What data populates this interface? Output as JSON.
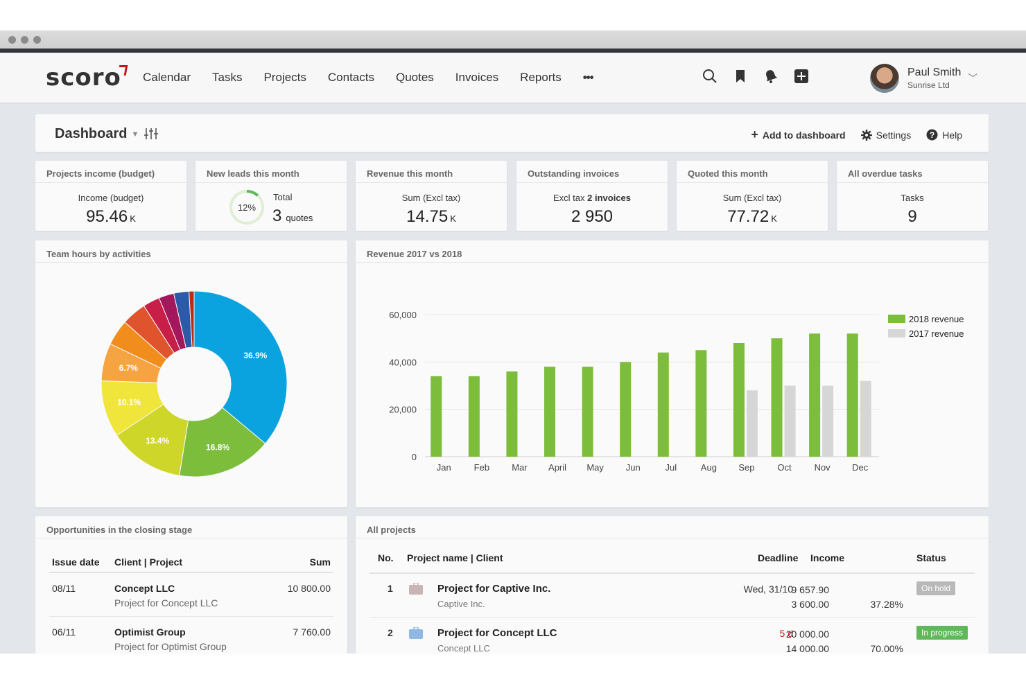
{
  "nav": {
    "logo": "scoro",
    "menu": [
      "Calendar",
      "Tasks",
      "Projects",
      "Contacts",
      "Quotes",
      "Invoices",
      "Reports",
      "•••"
    ],
    "user": {
      "name": "Paul Smith",
      "company": "Sunrise Ltd"
    }
  },
  "dashboard": {
    "title": "Dashboard",
    "add_label": "Add to dashboard",
    "settings_label": "Settings",
    "help_label": "Help"
  },
  "kpis": [
    {
      "title": "Projects income (budget)",
      "label": "Income (budget)",
      "value": "95.46",
      "unit": "K"
    },
    {
      "title": "New leads this month",
      "label": "Total",
      "value": "3",
      "unit": "quotes",
      "percent_text": "12%",
      "percent": 12
    },
    {
      "title": "Revenue this month",
      "label": "Sum (Excl tax)",
      "value": "14.75",
      "unit": "K"
    },
    {
      "title": "Outstanding invoices",
      "label_prefix": "Excl tax",
      "label_bold": "2 invoices",
      "value": "2 950"
    },
    {
      "title": "Quoted this month",
      "label": "Sum (Excl tax)",
      "value": "77.72",
      "unit": "K"
    },
    {
      "title": "All overdue tasks",
      "label": "Tasks",
      "value": "9"
    }
  ],
  "pie_panel": {
    "title": "Team hours by activities"
  },
  "bar_panel": {
    "title": "Revenue 2017 vs 2018"
  },
  "chart_data": [
    {
      "type": "pie",
      "donut": true,
      "slices": [
        {
          "label": "36.9%",
          "value": 36.9,
          "color": "#0aa3e0"
        },
        {
          "label": "16.8%",
          "value": 16.8,
          "color": "#7cbd3b"
        },
        {
          "label": "13.4%",
          "value": 13.4,
          "color": "#cfd62a"
        },
        {
          "label": "10.1%",
          "value": 10.1,
          "color": "#f0e53a"
        },
        {
          "label": "6.7%",
          "value": 6.7,
          "color": "#f5a441"
        },
        {
          "label": "",
          "value": 4.6,
          "color": "#f08d1c"
        },
        {
          "label": "",
          "value": 4.4,
          "color": "#e0542d"
        },
        {
          "label": "",
          "value": 3.0,
          "color": "#c81f48"
        },
        {
          "label": "",
          "value": 2.7,
          "color": "#a3185c"
        },
        {
          "label": "",
          "value": 2.7,
          "color": "#2d5aa8"
        },
        {
          "label": "",
          "value": 0.9,
          "color": "#b72d1c"
        }
      ]
    },
    {
      "type": "bar",
      "categories": [
        "Jan",
        "Feb",
        "Mar",
        "April",
        "May",
        "Jun",
        "Jul",
        "Aug",
        "Sep",
        "Oct",
        "Nov",
        "Dec"
      ],
      "series": [
        {
          "name": "2018 revenue",
          "color": "#7cbd3b",
          "values": [
            34000,
            34000,
            36000,
            38000,
            38000,
            40000,
            44000,
            45000,
            48000,
            50000,
            52000,
            52000
          ]
        },
        {
          "name": "2017 revenue",
          "color": "#d6d6d6",
          "values": [
            null,
            null,
            null,
            null,
            null,
            null,
            null,
            null,
            28000,
            30000,
            30000,
            32000
          ]
        }
      ],
      "yticks": [
        "60,000",
        "40,000",
        "20,000",
        "0"
      ],
      "ylim": [
        0,
        60000
      ],
      "legend": "top-right"
    }
  ],
  "opportunities": {
    "title": "Opportunities in the closing stage",
    "headers": [
      "Issue date",
      "Client | Project",
      "Sum"
    ],
    "rows": [
      {
        "date": "08/11",
        "client": "Concept LLC",
        "project": "Project for Concept LLC",
        "sum": "10 800.00"
      },
      {
        "date": "06/11",
        "client": "Optimist Group",
        "project": "Project for Optimist Group",
        "sum": "7 760.00"
      }
    ]
  },
  "projects": {
    "title": "All projects",
    "headers": [
      "No.",
      "Project name | Client",
      "Deadline",
      "Income",
      "Status"
    ],
    "rows": [
      {
        "no": "1",
        "name": "Project for Captive Inc.",
        "client": "Captive Inc.",
        "deadline": "Wed, 31/10",
        "income1": "9 657.90",
        "income2": "3 600.00",
        "percent": "37.28%",
        "status": "On hold",
        "status_color": "#b9b9b9",
        "icon_color": "#c9b4b4"
      },
      {
        "no": "2",
        "name": "Project for Concept LLC",
        "client": "Concept LLC",
        "deadline": "5 d",
        "income1": "20 000.00",
        "income2": "14 000.00",
        "percent": "70.00%",
        "status": "In progress",
        "status_color": "#5fb85a",
        "icon_color": "#8fb9e3"
      }
    ]
  }
}
